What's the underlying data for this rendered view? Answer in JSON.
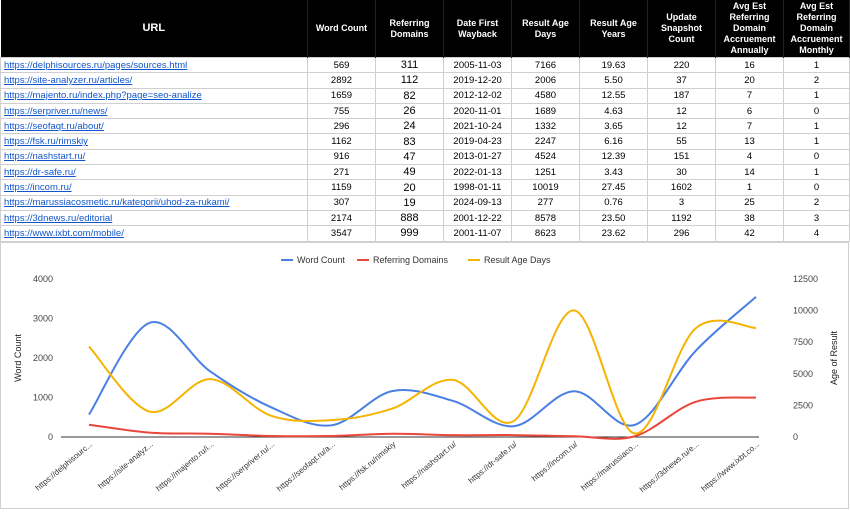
{
  "table": {
    "headers": [
      "URL",
      "Word Count",
      "Referring Domains",
      "Date First Wayback",
      "Result Age Days",
      "Result Age Years",
      "Update Snapshot Count",
      "Avg Est Referring Domain Accruement Annually",
      "Avg Est Referring Domain Accruement Monthly"
    ],
    "rows": [
      [
        "https://delphisources.ru/pages/sources.html",
        "569",
        "311",
        "2005-11-03",
        "7166",
        "19.63",
        "220",
        "16",
        "1"
      ],
      [
        "https://site-analyzer.ru/articles/",
        "2892",
        "112",
        "2019-12-20",
        "2006",
        "5.50",
        "37",
        "20",
        "2"
      ],
      [
        "https://majento.ru/index.php?page=seo-analize",
        "1659",
        "82",
        "2012-12-02",
        "4580",
        "12.55",
        "187",
        "7",
        "1"
      ],
      [
        "https://serpriver.ru/news/",
        "755",
        "26",
        "2020-11-01",
        "1689",
        "4.63",
        "12",
        "6",
        "0"
      ],
      [
        "https://seofaqt.ru/about/",
        "296",
        "24",
        "2021-10-24",
        "1332",
        "3.65",
        "12",
        "7",
        "1"
      ],
      [
        "https://fsk.ru/rimskiy",
        "1162",
        "83",
        "2019-04-23",
        "2247",
        "6.16",
        "55",
        "13",
        "1"
      ],
      [
        "https://nashstart.ru/",
        "916",
        "47",
        "2013-01-27",
        "4524",
        "12.39",
        "151",
        "4",
        "0"
      ],
      [
        "https://dr-safe.ru/",
        "271",
        "49",
        "2022-01-13",
        "1251",
        "3.43",
        "30",
        "14",
        "1"
      ],
      [
        "https://incom.ru/",
        "1159",
        "20",
        "1998-01-11",
        "10019",
        "27.45",
        "1602",
        "1",
        "0"
      ],
      [
        "https://marussiacosmetic.ru/kategorii/uhod-za-rukami/",
        "307",
        "19",
        "2024-09-13",
        "277",
        "0.76",
        "3",
        "25",
        "2"
      ],
      [
        "https://3dnews.ru/editorial",
        "2174",
        "888",
        "2001-12-22",
        "8578",
        "23.50",
        "1192",
        "38",
        "3"
      ],
      [
        "https://www.ixbt.com/mobile/",
        "3547",
        "999",
        "2001-11-07",
        "8623",
        "23.62",
        "296",
        "42",
        "4"
      ]
    ]
  },
  "chart_data": {
    "type": "line",
    "smooth": true,
    "categories": [
      "https://delphisourc...",
      "https://site-analyz...",
      "https://majento.ru/i...",
      "https://serpriver.ru/...",
      "https://seofaqt.ru/a...",
      "https://fsk.ru/rimskiy",
      "https://nashstart.ru/",
      "https://dr-safe.ru/",
      "https://incom.ru/",
      "https://marussiaco...",
      "https://3dnews.ru/e...",
      "https://www.ixbt.co..."
    ],
    "series": [
      {
        "name": "Word Count",
        "axis": "left",
        "color": "#4a7fe3",
        "values": [
          569,
          2892,
          1659,
          755,
          296,
          1162,
          916,
          271,
          1159,
          307,
          2174,
          3547
        ]
      },
      {
        "name": "Referring Domains",
        "axis": "left",
        "color": "#e8473a",
        "values": [
          311,
          112,
          82,
          26,
          24,
          83,
          47,
          49,
          20,
          19,
          888,
          999
        ]
      },
      {
        "name": "Result Age Days",
        "axis": "right",
        "color": "#f4b400",
        "values": [
          7166,
          2006,
          4580,
          1689,
          1332,
          2247,
          4524,
          1251,
          10019,
          277,
          8578,
          8623
        ]
      }
    ],
    "ylabel": "Word Count",
    "y2label": "Age of Result",
    "ylim": [
      0,
      4000
    ],
    "y2lim": [
      0,
      12500
    ],
    "yticks": [
      "0",
      "1000",
      "2000",
      "3000",
      "4000"
    ],
    "y2ticks": [
      "0",
      "2500",
      "5000",
      "7500",
      "10000",
      "12500"
    ],
    "legend": "top-center",
    "grid": false
  }
}
